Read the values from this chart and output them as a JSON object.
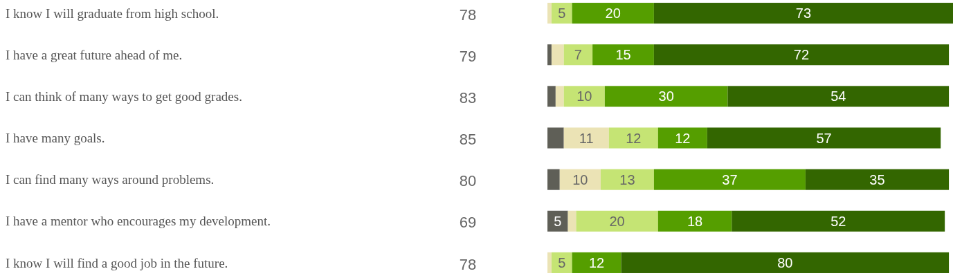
{
  "chart_data": {
    "type": "bar",
    "orientation": "horizontal",
    "stacked": true,
    "tick_labels": "y",
    "xlim": [
      0,
      99
    ],
    "categories": [
      "I know I will graduate from high school.",
      "I have a great future ahead of me.",
      "I can think of many ways to get good grades.",
      "I have many goals.",
      "I can find many ways around problems.",
      "I have a mentor who encourages my development.",
      "I know I will find a good job in the future."
    ],
    "annotations": [
      "78",
      "79",
      "83",
      "85",
      "80",
      "69",
      "78"
    ],
    "series": [
      {
        "color": "#5f5f57",
        "values": [
          0,
          1,
          2,
          4,
          3,
          5,
          0
        ],
        "value_labels": [
          null,
          null,
          null,
          null,
          null,
          "5",
          null
        ]
      },
      {
        "color": "#ebe3b5",
        "values": [
          1,
          3,
          2,
          11,
          10,
          2,
          1
        ],
        "value_labels": [
          null,
          null,
          null,
          "11",
          "10",
          null,
          null
        ]
      },
      {
        "color": "#c5e474",
        "values": [
          5,
          7,
          10,
          12,
          13,
          20,
          5
        ],
        "value_labels": [
          "5",
          "7",
          "10",
          "12",
          "13",
          "20",
          "5"
        ]
      },
      {
        "color": "#559e00",
        "values": [
          20,
          15,
          30,
          12,
          37,
          18,
          12
        ],
        "value_labels": [
          "20",
          "15",
          "30",
          "12",
          "37",
          "18",
          "12"
        ]
      },
      {
        "color": "#336600",
        "values": [
          73,
          72,
          54,
          57,
          35,
          52,
          80
        ],
        "value_labels": [
          "73",
          "72",
          "54",
          "57",
          "35",
          "52",
          "80"
        ]
      }
    ]
  }
}
